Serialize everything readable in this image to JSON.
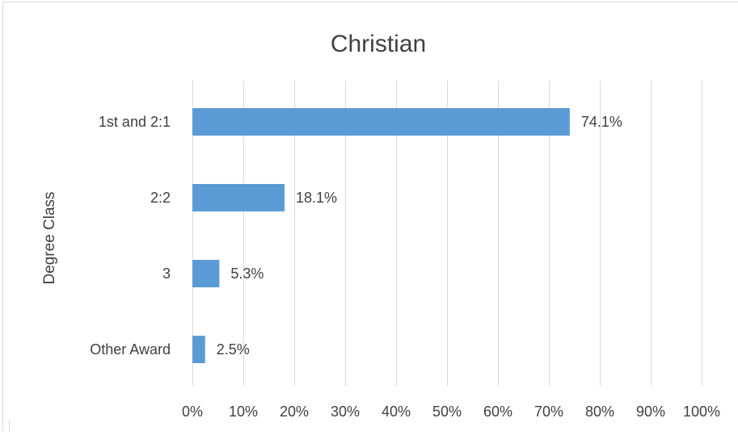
{
  "chart_data": {
    "type": "bar",
    "orientation": "horizontal",
    "title": "Christian",
    "ylabel": "Degree Class",
    "xlabel": "",
    "categories": [
      "1st and 2:1",
      "2:2",
      "3",
      "Other Award"
    ],
    "values": [
      74.1,
      18.1,
      5.3,
      2.5
    ],
    "value_labels": [
      "74.1%",
      "18.1%",
      "5.3%",
      "2.5%"
    ],
    "xlim": [
      0,
      100
    ],
    "x_ticks": [
      0,
      10,
      20,
      30,
      40,
      50,
      60,
      70,
      80,
      90,
      100
    ],
    "x_tick_labels": [
      "0%",
      "10%",
      "20%",
      "30%",
      "40%",
      "50%",
      "60%",
      "70%",
      "80%",
      "90%",
      "100%"
    ],
    "grid": "vertical",
    "legend": "none",
    "bar_color": "#5b9bd5",
    "grid_color": "#d9d9d9",
    "text_color": "#404040"
  }
}
